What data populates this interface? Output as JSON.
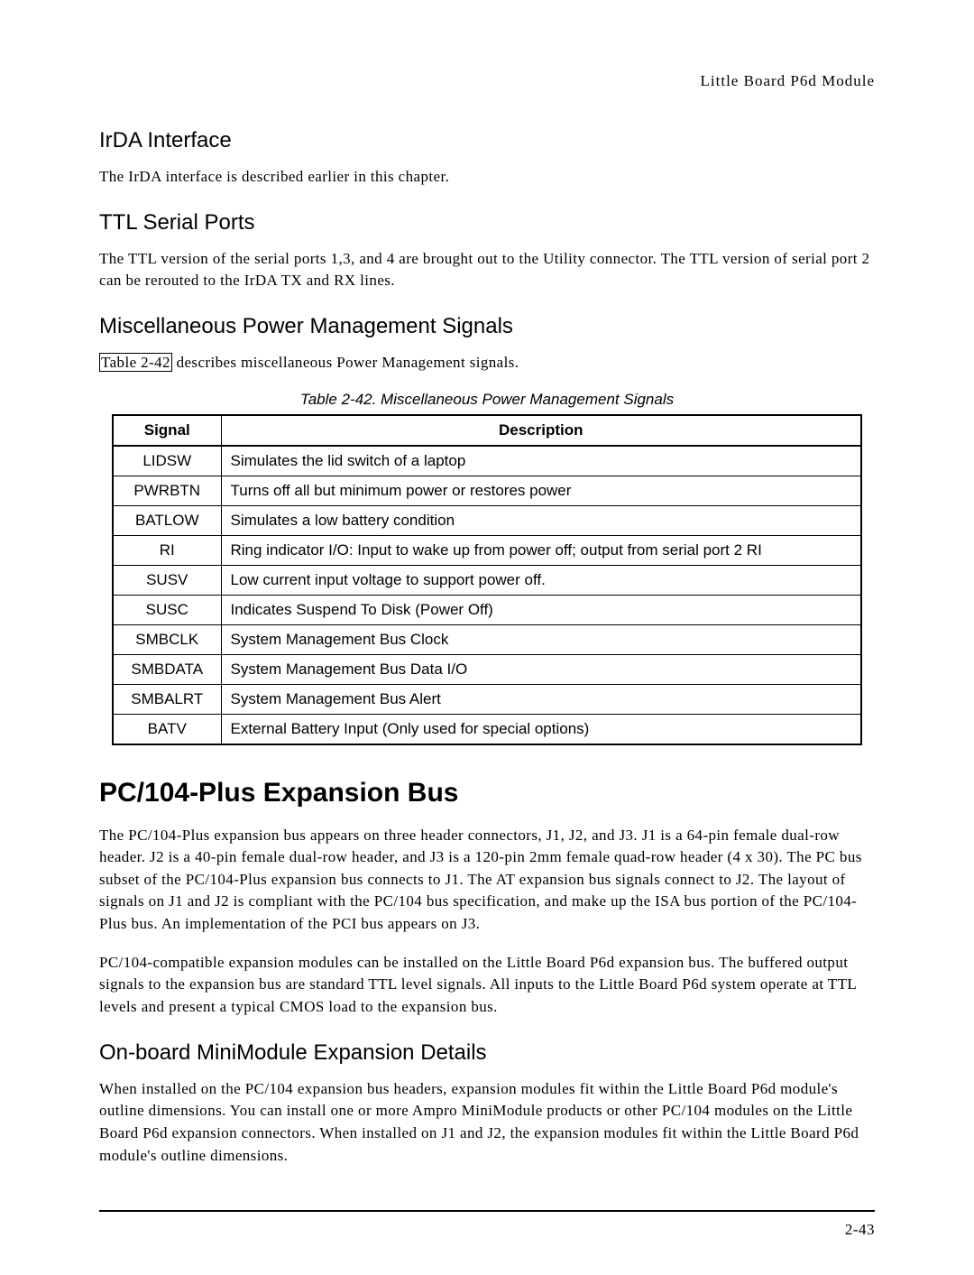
{
  "running_head": "Little Board P6d Module",
  "sections": {
    "irda": {
      "title": "IrDA Interface",
      "body": "The IrDA interface is described earlier in this chapter."
    },
    "ttl": {
      "title": "TTL Serial Ports",
      "body": "The TTL version of the serial ports 1,3, and 4 are brought out to the Utility connector.  The TTL version of serial port 2 can be rerouted to the IrDA TX and RX lines."
    },
    "misc_pm": {
      "title": "Miscellaneous Power Management Signals",
      "lead_ref": "Table 2-42",
      "lead_rest": " describes miscellaneous Power Management signals.",
      "caption": "Table 2-42.  Miscellaneous Power Management Signals",
      "columns": [
        "Signal",
        "Description"
      ],
      "rows": [
        [
          "LIDSW",
          "Simulates the lid switch of a laptop"
        ],
        [
          "PWRBTN",
          "Turns off all but minimum power or restores power"
        ],
        [
          "BATLOW",
          "Simulates a low battery condition"
        ],
        [
          "RI",
          "Ring indicator I/O: Input to wake up from power off; output from serial port 2 RI"
        ],
        [
          "SUSV",
          "Low current input voltage to support power off."
        ],
        [
          "SUSC",
          "Indicates Suspend To Disk (Power Off)"
        ],
        [
          "SMBCLK",
          "System Management Bus Clock"
        ],
        [
          "SMBDATA",
          "System Management Bus Data I/O"
        ],
        [
          "SMBALRT",
          "System Management Bus Alert"
        ],
        [
          "BATV",
          "External Battery Input (Only used for special options)"
        ]
      ]
    },
    "pc104": {
      "title": "PC/104-Plus Expansion Bus",
      "p1": "The PC/104-Plus expansion bus appears on three header connectors, J1, J2, and J3.  J1 is a 64-pin female dual-row header.  J2 is a 40-pin female dual-row header, and J3 is a 120-pin 2mm female quad-row header (4 x 30).  The PC bus subset of the PC/104-Plus expansion bus connects to J1.  The AT expansion bus signals connect to J2.  The layout of signals on J1 and J2 is compliant with the PC/104 bus specification, and make up the ISA bus portion of the PC/104-Plus bus.  An implementation of the PCI bus appears on J3.",
      "p2": "PC/104-compatible expansion modules can be installed on the Little Board P6d expansion bus.  The buffered output signals to the expansion bus are standard TTL level signals.  All inputs to the Little Board P6d system operate at TTL levels and present a typical CMOS load to the expansion bus."
    },
    "minimod": {
      "title": "On-board MiniModule Expansion Details",
      "body": "When installed on the PC/104 expansion bus headers, expansion modules fit within the Little Board P6d module's outline dimensions.  You can install one or more Ampro MiniModule products or other PC/104 modules on the Little Board P6d expansion connectors.  When installed on J1 and J2, the expansion modules fit within the Little Board P6d module's outline dimensions."
    }
  },
  "page_number": "2-43"
}
